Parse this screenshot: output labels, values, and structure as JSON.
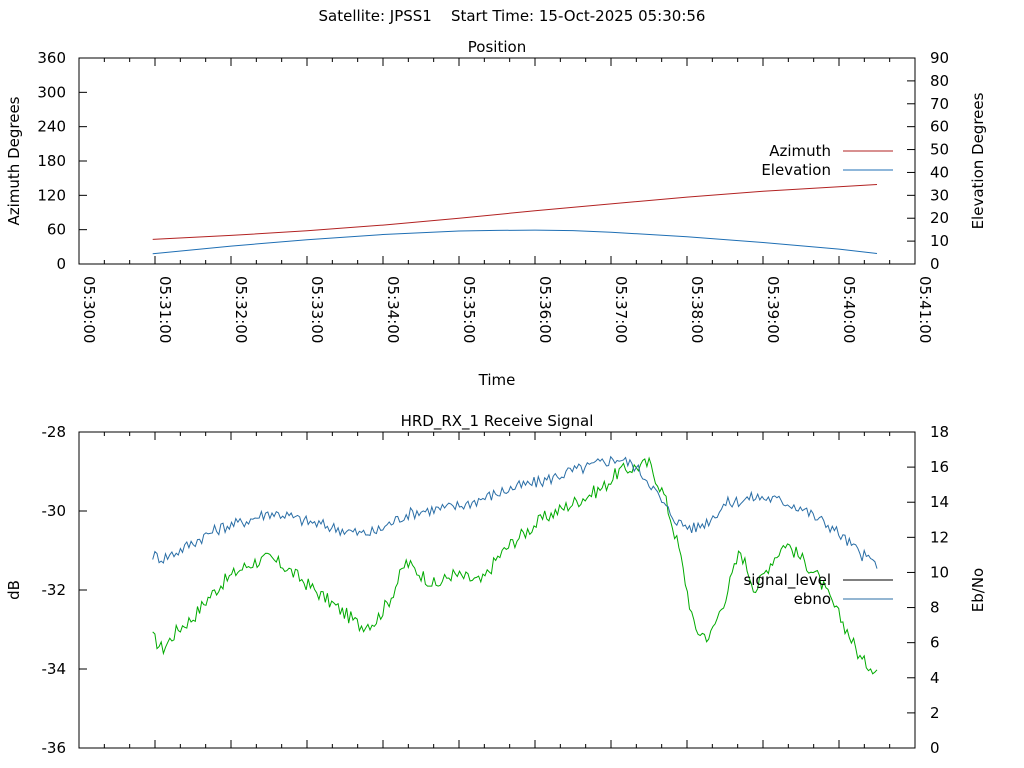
{
  "header": {
    "satellite_label": "Satellite: JPSS1",
    "start_time_label": "Start Time: 15-Oct-2025 05:30:56"
  },
  "chart_data": [
    {
      "type": "line",
      "title": "Position",
      "xlabel": "Time",
      "ylabel": "Azimuth Degrees",
      "y2label": "Elevation Degrees",
      "x_ticks": [
        "05:30:00",
        "05:31:00",
        "05:32:00",
        "05:33:00",
        "05:34:00",
        "05:35:00",
        "05:36:00",
        "05:37:00",
        "05:38:00",
        "05:39:00",
        "05:40:00",
        "05:41:00"
      ],
      "xlim_minutes": [
        0,
        11
      ],
      "ylim": [
        0,
        360
      ],
      "y_ticks": [
        "0",
        "60",
        "120",
        "180",
        "240",
        "300",
        "360"
      ],
      "y2lim": [
        0,
        90
      ],
      "y2_ticks": [
        "0",
        "10",
        "20",
        "30",
        "40",
        "50",
        "60",
        "70",
        "80",
        "90"
      ],
      "legend_position": "right",
      "series": [
        {
          "name": "Azimuth",
          "axis": "left",
          "color": "#b22222",
          "x": [
            0.97,
            2,
            3,
            4,
            5,
            6,
            7,
            8,
            9,
            10,
            10.5
          ],
          "values": [
            43,
            50,
            58,
            68,
            80,
            93,
            105,
            117,
            127,
            135,
            139
          ]
        },
        {
          "name": "Elevation",
          "axis": "right",
          "color": "#1f6fb4",
          "x": [
            0.97,
            2,
            3,
            4,
            5,
            5.5,
            6,
            6.5,
            7,
            8,
            9,
            10,
            10.5
          ],
          "values": [
            4.5,
            7.8,
            10.6,
            12.9,
            14.4,
            14.7,
            14.8,
            14.6,
            13.9,
            11.9,
            9.4,
            6.5,
            4.6
          ]
        }
      ]
    },
    {
      "type": "line",
      "title": "HRD_RX_1 Receive Signal",
      "ylabel": "dB",
      "y2label": "Eb/No",
      "xlim_minutes": [
        0,
        11
      ],
      "ylim": [
        -36,
        -28
      ],
      "y_ticks": [
        "-28",
        "-30",
        "-32",
        "-34",
        "-36"
      ],
      "y2lim": [
        0,
        18
      ],
      "y2_ticks": [
        "0",
        "2",
        "4",
        "6",
        "8",
        "10",
        "12",
        "14",
        "16",
        "18"
      ],
      "legend_position": "right",
      "series": [
        {
          "name": "signal_level",
          "axis": "left",
          "color": "#00aa00",
          "legend_color": "#000000",
          "x": [
            0.97,
            1.1,
            1.3,
            1.5,
            1.7,
            1.9,
            2.1,
            2.3,
            2.5,
            2.7,
            2.9,
            3.1,
            3.3,
            3.5,
            3.7,
            3.9,
            4.1,
            4.3,
            4.5,
            4.7,
            4.9,
            5.1,
            5.3,
            5.5,
            5.7,
            5.9,
            6.1,
            6.3,
            6.5,
            6.7,
            6.9,
            7.1,
            7.3,
            7.5,
            7.7,
            7.9,
            8.1,
            8.3,
            8.5,
            8.7,
            8.9,
            9.1,
            9.3,
            9.5,
            9.7,
            9.9,
            10.1,
            10.3,
            10.5
          ],
          "values": [
            -33.2,
            -33.5,
            -33.0,
            -32.7,
            -32.2,
            -31.8,
            -31.5,
            -31.3,
            -31.2,
            -31.4,
            -31.7,
            -32.0,
            -32.3,
            -32.6,
            -32.9,
            -32.8,
            -32.2,
            -31.3,
            -31.6,
            -31.9,
            -31.6,
            -31.7,
            -31.8,
            -31.2,
            -30.8,
            -30.5,
            -30.2,
            -30.0,
            -29.8,
            -29.6,
            -29.4,
            -29.0,
            -28.9,
            -28.8,
            -29.6,
            -31.0,
            -33.0,
            -33.2,
            -32.2,
            -31.0,
            -32.0,
            -31.3,
            -30.8,
            -31.2,
            -31.6,
            -32.3,
            -33.0,
            -33.8,
            -34.0
          ]
        },
        {
          "name": "ebno",
          "axis": "right",
          "color": "#2a6ea6",
          "x": [
            0.97,
            1.1,
            1.3,
            1.5,
            1.7,
            1.9,
            2.1,
            2.3,
            2.5,
            2.7,
            2.9,
            3.1,
            3.3,
            3.5,
            3.7,
            3.9,
            4.1,
            4.3,
            4.5,
            4.7,
            4.9,
            5.1,
            5.3,
            5.5,
            5.7,
            5.9,
            6.1,
            6.3,
            6.5,
            6.7,
            6.9,
            7.1,
            7.3,
            7.5,
            7.7,
            7.9,
            8.1,
            8.3,
            8.5,
            8.7,
            8.9,
            9.1,
            9.3,
            9.5,
            9.7,
            9.9,
            10.1,
            10.3,
            10.5
          ],
          "values": [
            11.0,
            10.8,
            11.2,
            11.7,
            12.2,
            12.6,
            12.8,
            13.1,
            13.4,
            13.3,
            13.0,
            12.8,
            12.6,
            12.4,
            12.2,
            12.3,
            12.8,
            13.3,
            13.5,
            13.6,
            13.7,
            13.9,
            14.2,
            14.5,
            14.8,
            15.0,
            15.2,
            15.5,
            15.8,
            16.0,
            16.3,
            16.5,
            16.1,
            15.2,
            13.8,
            12.8,
            12.5,
            13.0,
            13.9,
            14.1,
            14.3,
            14.2,
            14.0,
            13.7,
            13.1,
            12.6,
            11.8,
            11.0,
            10.5
          ]
        }
      ]
    }
  ]
}
